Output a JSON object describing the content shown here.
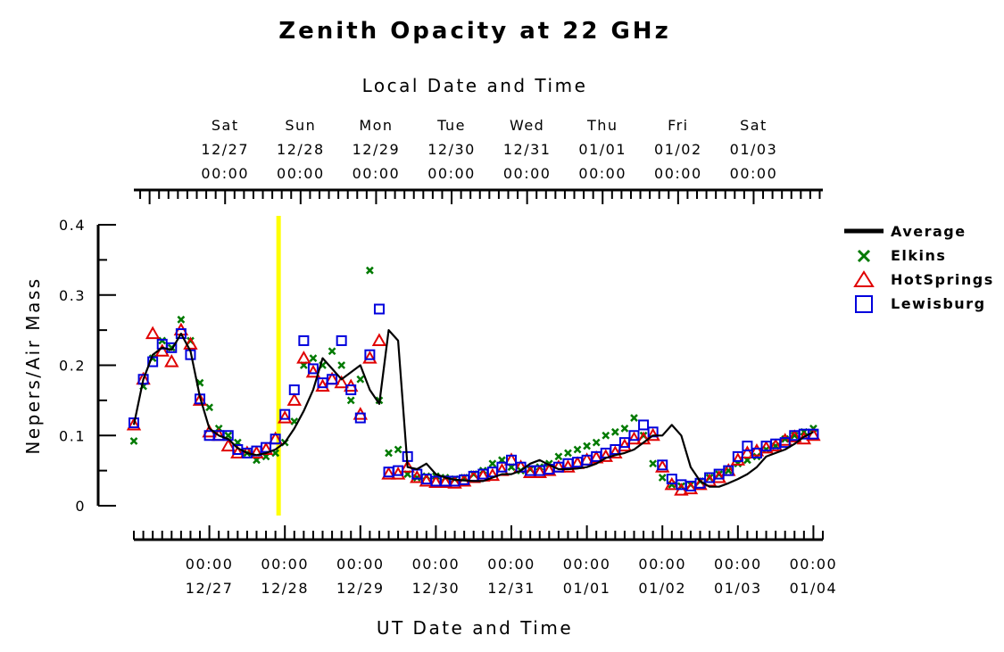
{
  "chart_data": {
    "type": "scatter",
    "title": "Zenith Opacity at 22 GHz",
    "top_axis_label": "Local Date and Time",
    "bottom_axis_label": "UT Date and Time",
    "ylabel": "Nepers/Air Mass",
    "ylim": [
      0,
      0.4
    ],
    "yticks": [
      "0",
      "0.1",
      "0.2",
      "0.3",
      "0.4"
    ],
    "xlim": [
      "2014-12-26T00:00Z",
      "2015-01-04T03:00Z"
    ],
    "grid": false,
    "legend_position": "right",
    "top_ticks": [
      {
        "day": "Sat",
        "date": "12/27",
        "time": "00:00"
      },
      {
        "day": "Sun",
        "date": "12/28",
        "time": "00:00"
      },
      {
        "day": "Mon",
        "date": "12/29",
        "time": "00:00"
      },
      {
        "day": "Tue",
        "date": "12/30",
        "time": "00:00"
      },
      {
        "day": "Wed",
        "date": "12/31",
        "time": "00:00"
      },
      {
        "day": "Thu",
        "date": "01/01",
        "time": "00:00"
      },
      {
        "day": "Fri",
        "date": "01/02",
        "time": "00:00"
      },
      {
        "day": "Sat",
        "date": "01/03",
        "time": "00:00"
      }
    ],
    "bottom_ticks": [
      {
        "time": "00:00",
        "date": "12/27"
      },
      {
        "time": "00:00",
        "date": "12/28"
      },
      {
        "time": "00:00",
        "date": "12/29"
      },
      {
        "time": "00:00",
        "date": "12/30"
      },
      {
        "time": "00:00",
        "date": "12/31"
      },
      {
        "time": "00:00",
        "date": "01/01"
      },
      {
        "time": "00:00",
        "date": "01/02"
      },
      {
        "time": "00:00",
        "date": "01/03"
      },
      {
        "time": "00:00",
        "date": "01/04"
      }
    ],
    "current_time_marker": {
      "x": "2014-12-27T22:00Z",
      "color": "#ffff00"
    },
    "series": [
      {
        "name": "Average",
        "marker": "line",
        "color": "#000000",
        "x": [
          "2014-12-26T00:00Z",
          "2014-12-26T03:00Z",
          "2014-12-26T06:00Z",
          "2014-12-26T09:00Z",
          "2014-12-26T12:00Z",
          "2014-12-26T15:00Z",
          "2014-12-26T18:00Z",
          "2014-12-26T21:00Z",
          "2014-12-27T00:00Z",
          "2014-12-27T03:00Z",
          "2014-12-27T06:00Z",
          "2014-12-27T09:00Z",
          "2014-12-27T12:00Z",
          "2014-12-27T15:00Z",
          "2014-12-27T18:00Z",
          "2014-12-27T21:00Z",
          "2014-12-28T00:00Z",
          "2014-12-28T03:00Z",
          "2014-12-28T06:00Z",
          "2014-12-28T09:00Z",
          "2014-12-28T12:00Z",
          "2014-12-28T15:00Z",
          "2014-12-28T18:00Z",
          "2014-12-28T21:00Z",
          "2014-12-29T00:00Z",
          "2014-12-29T03:00Z",
          "2014-12-29T06:00Z",
          "2014-12-29T09:00Z",
          "2014-12-29T12:00Z",
          "2014-12-29T15:00Z",
          "2014-12-29T18:00Z",
          "2014-12-29T21:00Z",
          "2014-12-30T00:00Z",
          "2014-12-30T03:00Z",
          "2014-12-30T06:00Z",
          "2014-12-30T09:00Z",
          "2014-12-30T12:00Z",
          "2014-12-30T15:00Z",
          "2014-12-30T18:00Z",
          "2014-12-30T21:00Z",
          "2014-12-31T00:00Z",
          "2014-12-31T03:00Z",
          "2014-12-31T06:00Z",
          "2014-12-31T09:00Z",
          "2014-12-31T12:00Z",
          "2014-12-31T15:00Z",
          "2014-12-31T18:00Z",
          "2014-12-31T21:00Z",
          "2015-01-01T00:00Z",
          "2015-01-01T03:00Z",
          "2015-01-01T06:00Z",
          "2015-01-01T09:00Z",
          "2015-01-01T12:00Z",
          "2015-01-01T15:00Z",
          "2015-01-01T18:00Z",
          "2015-01-01T21:00Z",
          "2015-01-02T00:00Z",
          "2015-01-02T03:00Z",
          "2015-01-02T06:00Z",
          "2015-01-02T09:00Z",
          "2015-01-02T12:00Z",
          "2015-01-02T15:00Z",
          "2015-01-02T18:00Z",
          "2015-01-02T21:00Z",
          "2015-01-03T00:00Z",
          "2015-01-03T03:00Z",
          "2015-01-03T06:00Z",
          "2015-01-03T09:00Z",
          "2015-01-03T12:00Z",
          "2015-01-03T15:00Z",
          "2015-01-03T18:00Z",
          "2015-01-03T21:00Z",
          "2015-01-04T00:00Z"
        ],
        "values": [
          0.115,
          0.18,
          0.215,
          0.225,
          0.222,
          0.245,
          0.22,
          0.155,
          0.11,
          0.1,
          0.095,
          0.082,
          0.075,
          0.072,
          0.075,
          0.08,
          0.09,
          0.11,
          0.135,
          0.165,
          0.21,
          0.195,
          0.18,
          0.19,
          0.2,
          0.165,
          0.145,
          0.25,
          0.235,
          0.055,
          0.052,
          0.06,
          0.045,
          0.04,
          0.037,
          0.036,
          0.035,
          0.035,
          0.04,
          0.045,
          0.045,
          0.05,
          0.06,
          0.065,
          0.058,
          0.052,
          0.052,
          0.053,
          0.055,
          0.06,
          0.068,
          0.072,
          0.075,
          0.08,
          0.09,
          0.1,
          0.1,
          0.115,
          0.1,
          0.055,
          0.035,
          0.027,
          0.027,
          0.032,
          0.038,
          0.045,
          0.055,
          0.07,
          0.075,
          0.08,
          0.088,
          0.098,
          0.105
        ]
      },
      {
        "name": "Elkins",
        "marker": "x",
        "color": "#007a00",
        "x": [
          "2014-12-26T00:00Z",
          "2014-12-26T03:00Z",
          "2014-12-26T06:00Z",
          "2014-12-26T09:00Z",
          "2014-12-26T12:00Z",
          "2014-12-26T15:00Z",
          "2014-12-26T18:00Z",
          "2014-12-26T21:00Z",
          "2014-12-27T00:00Z",
          "2014-12-27T03:00Z",
          "2014-12-27T06:00Z",
          "2014-12-27T09:00Z",
          "2014-12-27T12:00Z",
          "2014-12-27T15:00Z",
          "2014-12-27T18:00Z",
          "2014-12-27T21:00Z",
          "2014-12-28T00:00Z",
          "2014-12-28T03:00Z",
          "2014-12-28T06:00Z",
          "2014-12-28T09:00Z",
          "2014-12-28T12:00Z",
          "2014-12-28T15:00Z",
          "2014-12-28T18:00Z",
          "2014-12-28T21:00Z",
          "2014-12-29T00:00Z",
          "2014-12-29T03:00Z",
          "2014-12-29T06:00Z",
          "2014-12-29T09:00Z",
          "2014-12-29T12:00Z",
          "2014-12-29T15:00Z",
          "2014-12-29T18:00Z",
          "2014-12-29T21:00Z",
          "2014-12-30T00:00Z",
          "2014-12-30T03:00Z",
          "2014-12-30T06:00Z",
          "2014-12-30T09:00Z",
          "2014-12-30T12:00Z",
          "2014-12-30T15:00Z",
          "2014-12-30T18:00Z",
          "2014-12-30T21:00Z",
          "2014-12-31T00:00Z",
          "2014-12-31T03:00Z",
          "2014-12-31T06:00Z",
          "2014-12-31T09:00Z",
          "2014-12-31T12:00Z",
          "2014-12-31T15:00Z",
          "2014-12-31T18:00Z",
          "2014-12-31T21:00Z",
          "2015-01-01T00:00Z",
          "2015-01-01T03:00Z",
          "2015-01-01T06:00Z",
          "2015-01-01T09:00Z",
          "2015-01-01T12:00Z",
          "2015-01-01T15:00Z",
          "2015-01-01T18:00Z",
          "2015-01-01T21:00Z",
          "2015-01-02T00:00Z",
          "2015-01-02T03:00Z",
          "2015-01-02T06:00Z",
          "2015-01-02T09:00Z",
          "2015-01-02T12:00Z",
          "2015-01-02T15:00Z",
          "2015-01-02T18:00Z",
          "2015-01-02T21:00Z",
          "2015-01-03T00:00Z",
          "2015-01-03T03:00Z",
          "2015-01-03T06:00Z",
          "2015-01-03T09:00Z",
          "2015-01-03T12:00Z",
          "2015-01-03T15:00Z",
          "2015-01-03T18:00Z",
          "2015-01-03T21:00Z",
          "2015-01-04T00:00Z"
        ],
        "values": [
          0.092,
          0.17,
          0.21,
          0.235,
          0.225,
          0.265,
          0.235,
          0.175,
          0.14,
          0.11,
          0.1,
          0.09,
          0.075,
          0.065,
          0.07,
          0.075,
          0.09,
          0.12,
          0.2,
          0.21,
          0.2,
          0.22,
          0.2,
          0.15,
          0.18,
          0.335,
          0.15,
          0.075,
          0.08,
          0.045,
          0.04,
          0.042,
          0.042,
          0.04,
          0.038,
          0.04,
          0.045,
          0.05,
          0.06,
          0.065,
          0.055,
          0.05,
          0.052,
          0.055,
          0.06,
          0.07,
          0.075,
          0.08,
          0.085,
          0.09,
          0.1,
          0.105,
          0.11,
          0.125,
          0.1,
          0.06,
          0.04,
          0.03,
          0.028,
          0.03,
          0.035,
          0.04,
          0.045,
          0.05,
          0.06,
          0.065,
          0.07,
          0.08,
          0.085,
          0.095,
          0.1,
          0.105,
          0.11
        ]
      },
      {
        "name": "HotSprings",
        "marker": "triangle",
        "color": "#e00000",
        "x": [
          "2014-12-26T00:00Z",
          "2014-12-26T03:00Z",
          "2014-12-26T06:00Z",
          "2014-12-26T09:00Z",
          "2014-12-26T12:00Z",
          "2014-12-26T15:00Z",
          "2014-12-26T18:00Z",
          "2014-12-26T21:00Z",
          "2014-12-27T00:00Z",
          "2014-12-27T03:00Z",
          "2014-12-27T06:00Z",
          "2014-12-27T09:00Z",
          "2014-12-27T12:00Z",
          "2014-12-27T15:00Z",
          "2014-12-27T18:00Z",
          "2014-12-27T21:00Z",
          "2014-12-28T00:00Z",
          "2014-12-28T03:00Z",
          "2014-12-28T06:00Z",
          "2014-12-28T09:00Z",
          "2014-12-28T12:00Z",
          "2014-12-28T15:00Z",
          "2014-12-28T18:00Z",
          "2014-12-28T21:00Z",
          "2014-12-29T00:00Z",
          "2014-12-29T03:00Z",
          "2014-12-29T06:00Z",
          "2014-12-29T09:00Z",
          "2014-12-29T12:00Z",
          "2014-12-29T15:00Z",
          "2014-12-29T18:00Z",
          "2014-12-29T21:00Z",
          "2014-12-30T00:00Z",
          "2014-12-30T03:00Z",
          "2014-12-30T06:00Z",
          "2014-12-30T09:00Z",
          "2014-12-30T12:00Z",
          "2014-12-30T15:00Z",
          "2014-12-30T18:00Z",
          "2014-12-30T21:00Z",
          "2014-12-31T00:00Z",
          "2014-12-31T03:00Z",
          "2014-12-31T06:00Z",
          "2014-12-31T09:00Z",
          "2014-12-31T12:00Z",
          "2014-12-31T15:00Z",
          "2014-12-31T18:00Z",
          "2014-12-31T21:00Z",
          "2015-01-01T00:00Z",
          "2015-01-01T03:00Z",
          "2015-01-01T06:00Z",
          "2015-01-01T09:00Z",
          "2015-01-01T12:00Z",
          "2015-01-01T15:00Z",
          "2015-01-01T18:00Z",
          "2015-01-01T21:00Z",
          "2015-01-02T00:00Z",
          "2015-01-02T03:00Z",
          "2015-01-02T06:00Z",
          "2015-01-02T09:00Z",
          "2015-01-02T12:00Z",
          "2015-01-02T15:00Z",
          "2015-01-02T18:00Z",
          "2015-01-02T21:00Z",
          "2015-01-03T00:00Z",
          "2015-01-03T03:00Z",
          "2015-01-03T06:00Z",
          "2015-01-03T09:00Z",
          "2015-01-03T12:00Z",
          "2015-01-03T15:00Z",
          "2015-01-03T18:00Z",
          "2015-01-03T21:00Z",
          "2015-01-04T00:00Z"
        ],
        "values": [
          0.115,
          0.18,
          0.245,
          0.22,
          0.205,
          0.25,
          0.23,
          0.15,
          0.105,
          0.1,
          0.085,
          0.075,
          0.075,
          0.075,
          0.08,
          0.095,
          0.125,
          0.15,
          0.21,
          0.19,
          0.17,
          0.18,
          0.175,
          0.17,
          0.13,
          0.21,
          0.235,
          0.045,
          0.045,
          0.055,
          0.04,
          0.035,
          0.033,
          0.033,
          0.032,
          0.035,
          0.04,
          0.042,
          0.043,
          0.05,
          0.065,
          0.055,
          0.047,
          0.047,
          0.05,
          0.055,
          0.055,
          0.06,
          0.065,
          0.068,
          0.07,
          0.075,
          0.085,
          0.095,
          0.095,
          0.1,
          0.055,
          0.03,
          0.022,
          0.024,
          0.03,
          0.035,
          0.04,
          0.05,
          0.065,
          0.075,
          0.078,
          0.082,
          0.085,
          0.093,
          0.098,
          0.095,
          0.1
        ]
      },
      {
        "name": "Lewisburg",
        "marker": "square",
        "color": "#0000dd",
        "x": [
          "2014-12-26T00:00Z",
          "2014-12-26T03:00Z",
          "2014-12-26T06:00Z",
          "2014-12-26T09:00Z",
          "2014-12-26T12:00Z",
          "2014-12-26T15:00Z",
          "2014-12-26T18:00Z",
          "2014-12-26T21:00Z",
          "2014-12-27T00:00Z",
          "2014-12-27T03:00Z",
          "2014-12-27T06:00Z",
          "2014-12-27T09:00Z",
          "2014-12-27T12:00Z",
          "2014-12-27T15:00Z",
          "2014-12-27T18:00Z",
          "2014-12-27T21:00Z",
          "2014-12-28T00:00Z",
          "2014-12-28T03:00Z",
          "2014-12-28T06:00Z",
          "2014-12-28T09:00Z",
          "2014-12-28T12:00Z",
          "2014-12-28T15:00Z",
          "2014-12-28T18:00Z",
          "2014-12-28T21:00Z",
          "2014-12-29T00:00Z",
          "2014-12-29T03:00Z",
          "2014-12-29T06:00Z",
          "2014-12-29T09:00Z",
          "2014-12-29T12:00Z",
          "2014-12-29T15:00Z",
          "2014-12-29T18:00Z",
          "2014-12-29T21:00Z",
          "2014-12-30T00:00Z",
          "2014-12-30T03:00Z",
          "2014-12-30T06:00Z",
          "2014-12-30T09:00Z",
          "2014-12-30T12:00Z",
          "2014-12-30T15:00Z",
          "2014-12-30T18:00Z",
          "2014-12-30T21:00Z",
          "2014-12-31T00:00Z",
          "2014-12-31T03:00Z",
          "2014-12-31T06:00Z",
          "2014-12-31T09:00Z",
          "2014-12-31T12:00Z",
          "2014-12-31T15:00Z",
          "2014-12-31T18:00Z",
          "2014-12-31T21:00Z",
          "2015-01-01T00:00Z",
          "2015-01-01T03:00Z",
          "2015-01-01T06:00Z",
          "2015-01-01T09:00Z",
          "2015-01-01T12:00Z",
          "2015-01-01T15:00Z",
          "2015-01-01T18:00Z",
          "2015-01-01T21:00Z",
          "2015-01-02T00:00Z",
          "2015-01-02T03:00Z",
          "2015-01-02T06:00Z",
          "2015-01-02T09:00Z",
          "2015-01-02T12:00Z",
          "2015-01-02T15:00Z",
          "2015-01-02T18:00Z",
          "2015-01-02T21:00Z",
          "2015-01-03T00:00Z",
          "2015-01-03T03:00Z",
          "2015-01-03T06:00Z",
          "2015-01-03T09:00Z",
          "2015-01-03T12:00Z",
          "2015-01-03T15:00Z",
          "2015-01-03T18:00Z",
          "2015-01-03T21:00Z",
          "2015-01-04T00:00Z"
        ],
        "values": [
          0.118,
          0.18,
          0.205,
          0.23,
          0.225,
          0.245,
          0.215,
          0.152,
          0.1,
          0.1,
          0.1,
          0.08,
          0.075,
          0.078,
          0.083,
          0.095,
          0.13,
          0.165,
          0.235,
          0.195,
          0.175,
          0.18,
          0.235,
          0.165,
          0.125,
          0.215,
          0.28,
          0.048,
          0.05,
          0.07,
          0.045,
          0.038,
          0.035,
          0.035,
          0.035,
          0.037,
          0.042,
          0.045,
          0.048,
          0.055,
          0.065,
          0.055,
          0.05,
          0.05,
          0.052,
          0.055,
          0.06,
          0.062,
          0.065,
          0.07,
          0.075,
          0.08,
          0.09,
          0.1,
          0.115,
          0.105,
          0.058,
          0.038,
          0.03,
          0.028,
          0.032,
          0.04,
          0.045,
          0.05,
          0.07,
          0.085,
          0.075,
          0.085,
          0.088,
          0.09,
          0.1,
          0.102,
          0.102
        ]
      }
    ]
  }
}
